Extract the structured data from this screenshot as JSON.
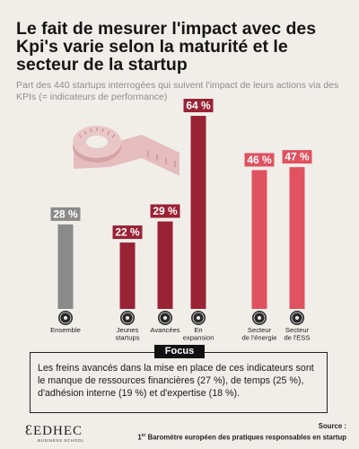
{
  "title": "Le fait de mesurer l'impact avec des Kpi's varie selon la maturité et le secteur de la startup",
  "subtitle": "Part des 440 startups interrogées qui suivent l'impact de leurs actions via des KPIs (= indicateurs de performance)",
  "chart_data": {
    "type": "bar",
    "title": "",
    "ylim": [
      0,
      70
    ],
    "categories": [
      {
        "label_lines": [
          "Ensemble"
        ],
        "value": 28,
        "value_label": "28 %",
        "color": "#8a8a8a",
        "icon": "network-icon"
      },
      {
        "label_lines": [
          "Jeunes",
          "startups"
        ],
        "value": 22,
        "value_label": "22 %",
        "color": "#9a2235",
        "icon": "seedling-icon"
      },
      {
        "label_lines": [
          "Avancées"
        ],
        "value": 29,
        "value_label": "29 %",
        "color": "#9a2235",
        "icon": "sprout-icon"
      },
      {
        "label_lines": [
          "En",
          "expansion"
        ],
        "value": 64,
        "value_label": "64 %",
        "color": "#9a2235",
        "icon": "rocket-icon"
      },
      {
        "label_lines": [
          "Secteur",
          "de l'énergie"
        ],
        "value": 46,
        "value_label": "46 %",
        "color": "#e0525f",
        "icon": "energy-leaf-icon"
      },
      {
        "label_lines": [
          "Secteur",
          "de l'ESS"
        ],
        "value": 47,
        "value_label": "47 %",
        "color": "#e0525f",
        "icon": "book-icon"
      }
    ],
    "grid": false,
    "legend": "none"
  },
  "focus": {
    "label": "Focus",
    "text": "Les freins avancés dans la mise en place de ces indicateurs sont le manque de ressources financières (27 %), de temps (25 %), d'adhésion interne (19 %) et d'expertise (18 %)."
  },
  "logo": {
    "main": "EDHEC",
    "sub": "BUSINESS SCHOOL"
  },
  "source": {
    "label": "Source :",
    "ordinal": "1",
    "ordinal_suffix": "er",
    "text": "Baromètre européen des pratiques responsables en startup"
  },
  "colors": {
    "background": "#f1eeea",
    "grey": "#8a8a8a",
    "dark_red": "#9a2235",
    "light_red": "#e0525f",
    "tape": "#d7a0a3"
  }
}
